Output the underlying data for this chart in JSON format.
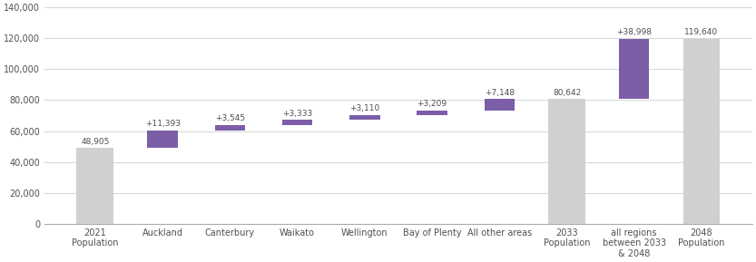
{
  "categories": [
    "2021\nPopulation",
    "Auckland",
    "Canterbury",
    "Waikato",
    "Wellington",
    "Bay of Plenty",
    "All other areas",
    "2033\nPopulation",
    "all regions\nbetween 2033\n& 2048",
    "2048\nPopulation"
  ],
  "bar_bottoms": [
    0,
    48905,
    60298,
    63843,
    67176,
    70286,
    73495,
    0,
    80642,
    0
  ],
  "bar_heights": [
    48905,
    11393,
    3545,
    3333,
    3110,
    3209,
    7148,
    80642,
    38998,
    119640
  ],
  "bar_colors": [
    "#d0d0d0",
    "#7b5ea7",
    "#7b5ea7",
    "#7b5ea7",
    "#7b5ea7",
    "#7b5ea7",
    "#7b5ea7",
    "#d0d0d0",
    "#7b5ea7",
    "#d0d0d0"
  ],
  "bar_widths": [
    0.5,
    0.5,
    0.5,
    0.5,
    0.5,
    0.5,
    0.5,
    0.5,
    0.5,
    0.5
  ],
  "labels": [
    "48,905",
    "+11,393",
    "+3,545",
    "+3,333",
    "+3,110",
    "+3,209",
    "+7,148",
    "80,642",
    "+38,998",
    "119,640"
  ],
  "label_offsets": [
    1500,
    1500,
    1500,
    1500,
    1500,
    1500,
    1500,
    1500,
    1500,
    1500
  ],
  "ylim": [
    0,
    140000
  ],
  "yticks": [
    0,
    20000,
    40000,
    60000,
    80000,
    100000,
    120000,
    140000
  ],
  "ytick_labels": [
    "0",
    "20,000",
    "40,000",
    "60,000",
    "80,000",
    "100,000",
    "120,000",
    "140,000"
  ],
  "gray_color": "#d0d0d0",
  "purple_color": "#7b5ea7",
  "text_color": "#505050",
  "grid_color": "#d0d0d0",
  "background_color": "#ffffff",
  "figwidth": 8.33,
  "figheight": 2.89,
  "dpi": 100
}
